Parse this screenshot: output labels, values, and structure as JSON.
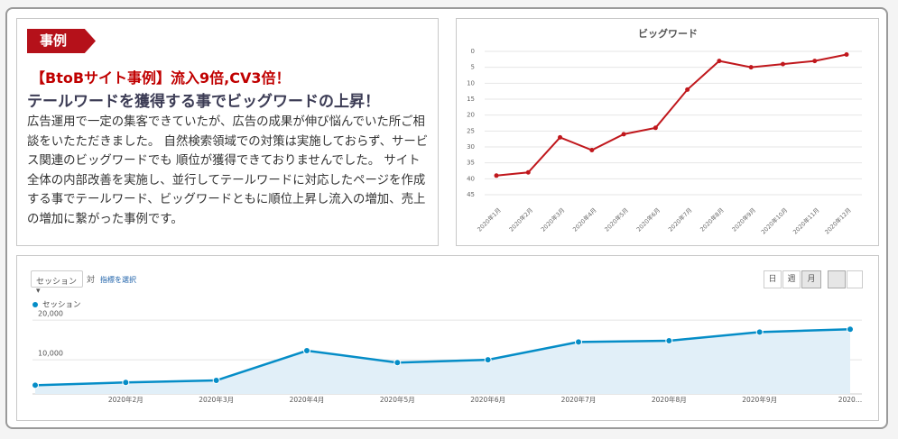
{
  "case": {
    "badge": "事例",
    "headline": "【BtoBサイト事例】流入9倍,CV3倍！",
    "subheadline": "テールワードを獲得する事でビッグワードの上昇！",
    "body": "広告運用で一定の集客できていたが、広告の成果が伸び悩んでいた所ご相談をいたただきました。 自然検索領域での対策は実施しておらず、サービス関連のビッグワードでも 順位が獲得できておりませんでした。 サイト全体の内部改善を実施し、並行してテールワードに対応したページを作成する事でテールワード、ビッグワードともに順位上昇し流入の増加、売上の増加に繋がった事例です。"
  },
  "controls": {
    "metric": "セッション",
    "versus": "対",
    "select_metric": "指標を選択",
    "periods": [
      "日",
      "週",
      "月"
    ]
  },
  "chart_data": [
    {
      "type": "line",
      "title": "ビッグワード",
      "categories": [
        "2020年1月",
        "2020年2月",
        "2020年3月",
        "2020年4月",
        "2020年5月",
        "2020年6月",
        "2020年7月",
        "2020年8月",
        "2020年9月",
        "2020年10月",
        "2020年11月",
        "2020年12月"
      ],
      "values": [
        39,
        38,
        27,
        31,
        26,
        24,
        12,
        3,
        5,
        4,
        3,
        1
      ],
      "color": "#c0171c",
      "ylim": [
        0,
        45
      ],
      "y_inverted": true,
      "yticks": [
        0,
        5,
        10,
        15,
        20,
        25,
        30,
        35,
        40,
        45
      ],
      "grid": true
    },
    {
      "type": "area",
      "categories": [
        null,
        "2020年2月",
        "2020年3月",
        "2020年4月",
        "2020年5月",
        "2020年6月",
        "2020年7月",
        "2020年8月",
        "2020年9月",
        "2020…"
      ],
      "series": [
        {
          "name": "セッション",
          "color": "#058dc7",
          "values": [
            3600,
            4300,
            4800,
            12300,
            9300,
            10000,
            14500,
            14800,
            17000,
            17700
          ]
        }
      ],
      "ylim": [
        1400,
        22300
      ],
      "yticks": [
        {
          "value": 10000,
          "label": "10,000"
        },
        {
          "value": 20000,
          "label": "20,000"
        }
      ],
      "grid": true
    }
  ]
}
